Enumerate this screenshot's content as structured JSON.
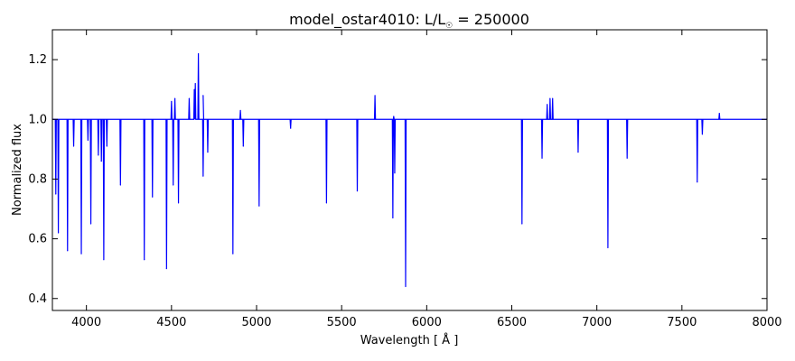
{
  "chart_data": {
    "type": "line",
    "title": "model_ostar4010: L/L",
    "title_sub": "☉",
    "title_value": " = 250000",
    "xlabel": "Wavelength [ Å ]",
    "ylabel": "Normalized flux",
    "xlim": [
      3800,
      8000
    ],
    "ylim": [
      0.36,
      1.3
    ],
    "xticks": [
      4000,
      4500,
      5000,
      5500,
      6000,
      6500,
      7000,
      7500,
      8000
    ],
    "yticks": [
      0.4,
      0.6,
      0.8,
      1.0,
      1.2
    ],
    "ytick_labels": [
      "0.4",
      "0.6",
      "0.8",
      "1.0",
      "1.2"
    ],
    "grid": false,
    "series": [
      {
        "color": "#0000ff",
        "continuum": 1.0,
        "absorption_lines": [
          [
            3820,
            0.75
          ],
          [
            3835,
            0.62
          ],
          [
            3889,
            0.56
          ],
          [
            3925,
            0.91
          ],
          [
            3970,
            0.55
          ],
          [
            4009,
            0.93
          ],
          [
            4026,
            0.65
          ],
          [
            4070,
            0.88
          ],
          [
            4088,
            0.86
          ],
          [
            4102,
            0.53
          ],
          [
            4120,
            0.91
          ],
          [
            4200,
            0.78
          ],
          [
            4340,
            0.53
          ],
          [
            4388,
            0.74
          ],
          [
            4471,
            0.5
          ],
          [
            4510,
            0.78
          ],
          [
            4541,
            0.72
          ],
          [
            4686,
            0.81
          ],
          [
            4713,
            0.89
          ],
          [
            4861,
            0.55
          ],
          [
            4922,
            0.91
          ],
          [
            5015,
            0.71
          ],
          [
            5200,
            0.97
          ],
          [
            5411,
            0.72
          ],
          [
            5592,
            0.76
          ],
          [
            5801,
            0.67
          ],
          [
            5812,
            0.82
          ],
          [
            5876,
            0.44
          ],
          [
            6560,
            0.65
          ],
          [
            6678,
            0.87
          ],
          [
            6890,
            0.89
          ],
          [
            7065,
            0.57
          ],
          [
            7178,
            0.87
          ],
          [
            7590,
            0.79
          ],
          [
            7620,
            0.95
          ]
        ],
        "emission_lines": [
          [
            4500,
            1.06
          ],
          [
            4520,
            1.07
          ],
          [
            4604,
            1.07
          ],
          [
            4634,
            1.1
          ],
          [
            4640,
            1.12
          ],
          [
            4658,
            1.22
          ],
          [
            4686,
            1.08
          ],
          [
            4905,
            1.03
          ],
          [
            5696,
            1.08
          ],
          [
            5806,
            1.01
          ],
          [
            6708,
            1.05
          ],
          [
            6725,
            1.07
          ],
          [
            6740,
            1.07
          ],
          [
            7720,
            1.02
          ]
        ]
      }
    ]
  }
}
